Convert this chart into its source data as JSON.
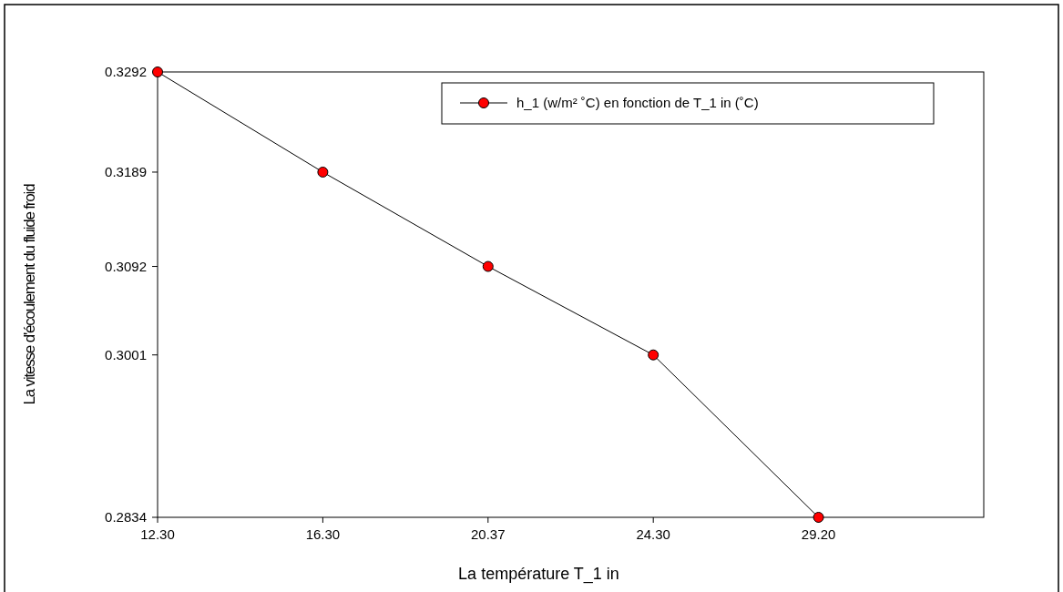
{
  "chart_data": {
    "type": "line",
    "xlabel": "La température T_1 in",
    "ylabel": "La vitesse d'écoulement du fluide froid",
    "categories": [
      "12.30",
      "16.30",
      "20.37",
      "24.30",
      "29.20"
    ],
    "series": [
      {
        "name": "h_1 (w/m² ˚C) en fonction de T_1 in (˚C)",
        "color": "#000000",
        "values": [
          0.3292,
          0.3189,
          0.3092,
          0.3001,
          0.2834
        ]
      }
    ],
    "ylim": [
      0.2834,
      0.3292
    ],
    "yticks": [
      0.2834,
      0.3001,
      0.3092,
      0.3189,
      0.3292
    ],
    "marker": "circle",
    "line_style": "solid",
    "legend": "top right",
    "grid": false
  }
}
